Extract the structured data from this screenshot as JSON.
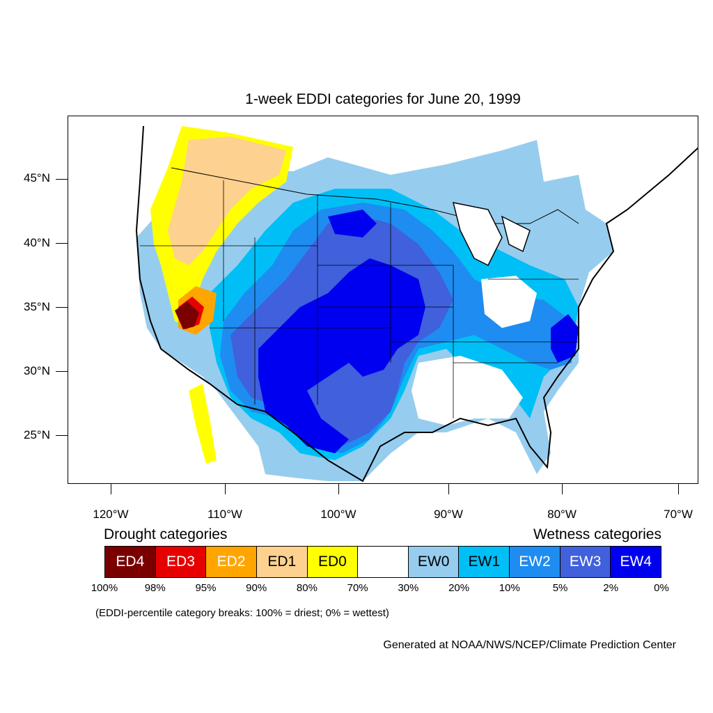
{
  "title": "1-week EDDI categories for June 20, 1999",
  "lat_labels": [
    "45°N",
    "40°N",
    "35°N",
    "30°N",
    "25°N"
  ],
  "lon_labels": [
    "120°W",
    "110°W",
    "100°W",
    "90°W",
    "80°W",
    "70°W"
  ],
  "legend": {
    "drought_heading": "Drought categories",
    "wetness_heading": "Wetness categories",
    "categories": [
      {
        "label": "ED4",
        "color": "#7a0000",
        "text_color": "#ffffff"
      },
      {
        "label": "ED3",
        "color": "#e60000",
        "text_color": "#ffffff"
      },
      {
        "label": "ED2",
        "color": "#ffa500",
        "text_color": "#ffffff"
      },
      {
        "label": "ED1",
        "color": "#fdd18f",
        "text_color": "#000000"
      },
      {
        "label": "ED0",
        "color": "#ffff00",
        "text_color": "#000000"
      },
      {
        "label": "",
        "color": "#ffffff",
        "text_color": "#000000"
      },
      {
        "label": "EW0",
        "color": "#96cdee",
        "text_color": "#000000"
      },
      {
        "label": "EW1",
        "color": "#00bff6",
        "text_color": "#000000"
      },
      {
        "label": "EW2",
        "color": "#1e8cf0",
        "text_color": "#ffffff"
      },
      {
        "label": "EW3",
        "color": "#4060dc",
        "text_color": "#ffffff"
      },
      {
        "label": "EW4",
        "color": "#0000f0",
        "text_color": "#ffffff"
      }
    ],
    "percentiles": [
      "100%",
      "98%",
      "95%",
      "90%",
      "80%",
      "70%",
      "30%",
      "20%",
      "10%",
      "5%",
      "2%",
      "0%"
    ]
  },
  "note": "(EDDI-percentile category breaks: 100% = driest; 0% = wettest)",
  "credit": "Generated at NOAA/NWS/NCEP/Climate Prediction Center"
}
